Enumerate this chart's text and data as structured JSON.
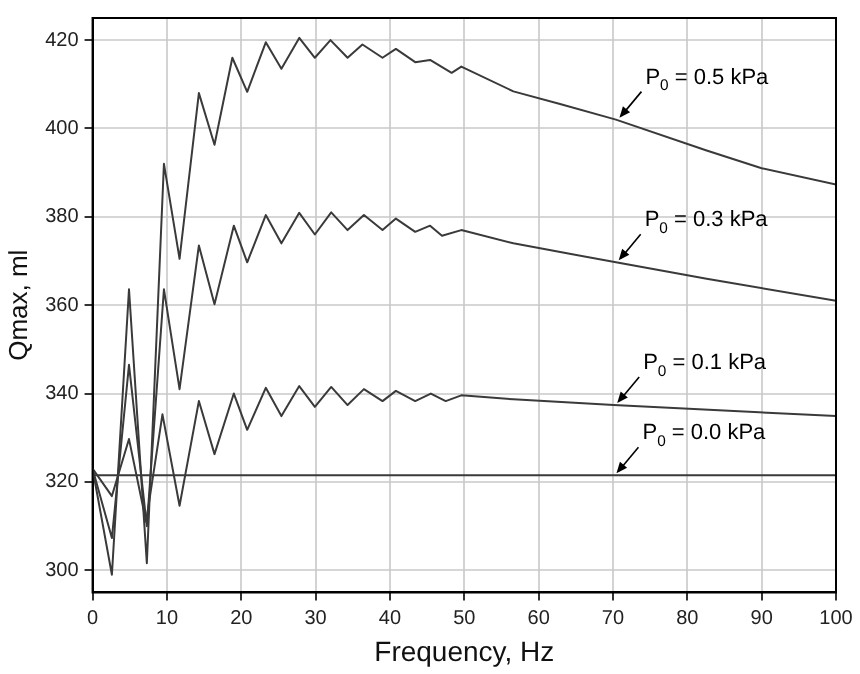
{
  "chart_data": {
    "type": "line",
    "xlabel": "Frequency, Hz",
    "ylabel": "Qmax, ml",
    "xlim": [
      0,
      100
    ],
    "ylim": [
      295,
      425
    ],
    "xticks": [
      0,
      10,
      20,
      30,
      40,
      50,
      60,
      70,
      80,
      90,
      100
    ],
    "yticks": [
      300,
      320,
      340,
      360,
      380,
      400,
      420
    ],
    "grid": true,
    "line_style": "solid",
    "series": [
      {
        "color": "#3a3a3a",
        "x": [
          0,
          2.6,
          4.9,
          7.3,
          9.6,
          11.7,
          14.3,
          16.4,
          18.8,
          20.8,
          23.3,
          25.4,
          27.8,
          29.9,
          32,
          34.3,
          36.3,
          39,
          40.8,
          43.4,
          45.4,
          48.3,
          49.6,
          56.6,
          63,
          70.4,
          82.6,
          90,
          100
        ],
        "values": [
          323,
          299,
          363.6,
          301.6,
          392,
          370.5,
          408,
          396.3,
          416,
          408.3,
          419.5,
          413.5,
          420.5,
          416,
          420,
          416,
          419,
          416,
          418,
          415,
          415.5,
          412.6,
          414,
          408.4,
          405.5,
          402,
          395,
          391,
          387.3
        ]
      },
      {
        "color": "#3a3a3a",
        "x": [
          0,
          2.6,
          4.9,
          7.3,
          9.6,
          11.7,
          14.3,
          16.4,
          19,
          20.8,
          23.3,
          25.4,
          27.8,
          29.9,
          32.1,
          34.3,
          36.5,
          39,
          40.8,
          43.4,
          45.4,
          47,
          49.6,
          56.6,
          70.4,
          82.6,
          100
        ],
        "values": [
          323,
          307.3,
          346.5,
          310,
          363.6,
          341,
          373.5,
          360.2,
          378,
          369.7,
          380.4,
          374,
          380.9,
          376,
          381,
          377,
          380.4,
          377,
          379.6,
          376.6,
          378,
          375.7,
          377,
          374,
          369.7,
          366,
          361
        ]
      },
      {
        "color": "#3a3a3a",
        "x": [
          0,
          2.6,
          4.9,
          7.2,
          9.4,
          11.7,
          14.3,
          16.4,
          19,
          20.8,
          23.3,
          25.4,
          27.8,
          29.9,
          32.1,
          34.3,
          36.5,
          39,
          40.8,
          43.4,
          45.5,
          47.5,
          49.6,
          56.6,
          70.1,
          100
        ],
        "values": [
          323,
          316.8,
          329.7,
          311,
          335.3,
          314.6,
          338.3,
          326.3,
          340,
          331.8,
          341.3,
          334.9,
          341.7,
          337,
          341.5,
          337.4,
          341,
          338.3,
          340.6,
          338.3,
          340,
          338.3,
          339.6,
          338.7,
          337.4,
          334.9
        ]
      },
      {
        "color": "#3a3a3a",
        "x": [
          0,
          100
        ],
        "values": [
          321.5,
          321.5
        ]
      }
    ],
    "annotations": [
      {
        "text": "P$_{0}$ = 0.5 kPa",
        "x": 70.6,
        "y": 402
      },
      {
        "text": "P$_{0}$ = 0.3 kPa",
        "x": 70.5,
        "y": 369.7
      },
      {
        "text": "P$_{0}$ = 0.1 kPa",
        "x": 70.3,
        "y": 337.4
      },
      {
        "text": "P$_{0}$ = 0.0 kPa",
        "x": 70.2,
        "y": 321.5
      }
    ]
  }
}
